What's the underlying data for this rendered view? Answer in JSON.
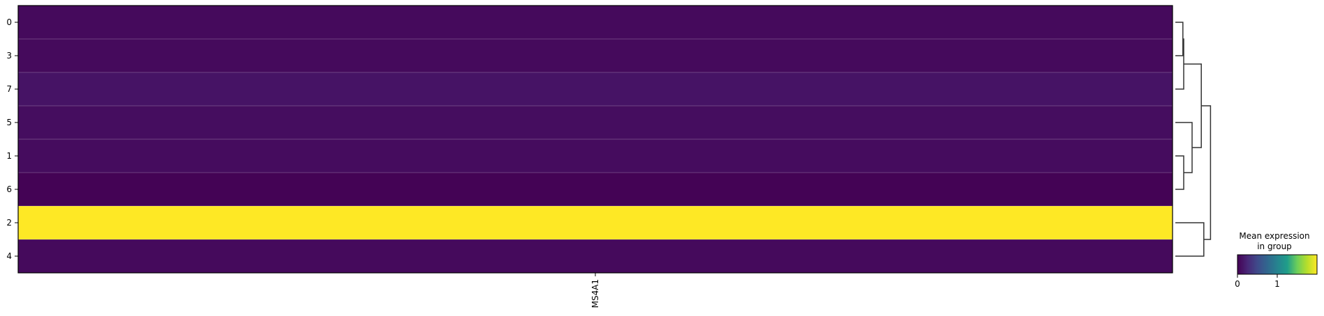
{
  "chart_data": {
    "type": "heatmap",
    "rows": [
      "0",
      "3",
      "7",
      "5",
      "1",
      "6",
      "2",
      "4"
    ],
    "columns": [
      "MS4A1"
    ],
    "values": [
      [
        0.06
      ],
      [
        0.06
      ],
      [
        0.12
      ],
      [
        0.08
      ],
      [
        0.07
      ],
      [
        0.01
      ],
      [
        2.0
      ],
      [
        0.06
      ]
    ],
    "color_range": [
      0,
      2.0
    ],
    "colormap": "viridis",
    "colormap_stops": [
      "#440154",
      "#482777",
      "#3f4a8a",
      "#31678e",
      "#26838f",
      "#1f9d8a",
      "#6cce5a",
      "#b6de2b",
      "#fee825"
    ],
    "colorbar": {
      "title_lines": [
        "Mean expression",
        "in group"
      ],
      "ticks": [
        0,
        1
      ]
    },
    "dendrogram": {
      "joins": [
        {
          "a": "r:0",
          "b": "r:3",
          "h": 0.18
        },
        {
          "a": "n:0",
          "b": "r:7",
          "h": 0.2
        },
        {
          "a": "r:1",
          "b": "r:6",
          "h": 0.2
        },
        {
          "a": "r:5",
          "b": "n:2",
          "h": 0.4
        },
        {
          "a": "n:1",
          "b": "n:3",
          "h": 0.62
        },
        {
          "a": "r:2",
          "b": "r:4",
          "h": 0.68
        },
        {
          "a": "n:4",
          "b": "n:5",
          "h": 0.84
        }
      ]
    }
  }
}
